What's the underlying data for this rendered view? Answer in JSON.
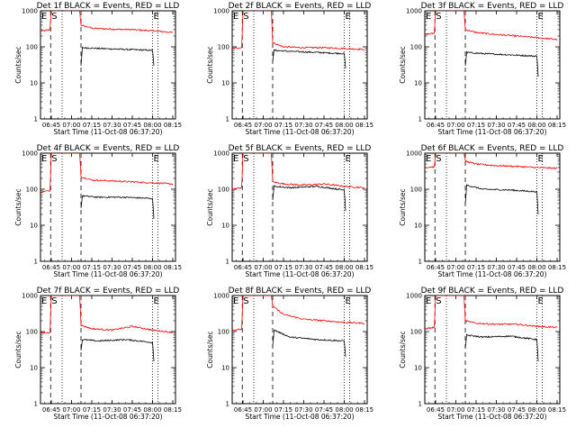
{
  "chart_data": [
    {
      "type": "line",
      "title": "Det 1f BLACK = Events, RED = LLD",
      "xlabel": "Start Time (11-Oct-08 06:37:20)",
      "ylabel": "Counts/sec",
      "xticks": [
        "06:45",
        "07:00",
        "07:15",
        "07:30",
        "07:45",
        "08:00",
        "08:15"
      ],
      "yticks": [
        "1",
        "10",
        "100",
        "1000"
      ],
      "yscale": "log",
      "ylim": [
        1,
        1000
      ],
      "markers": [
        "E",
        "S",
        "E"
      ],
      "series": [
        {
          "color": "#ff0000",
          "x": [
            "06:37",
            "06:44",
            "06:45",
            "06:45:30",
            "06:46",
            "07:06",
            "07:07",
            "07:15",
            "07:30",
            "07:45",
            "08:00",
            "08:15"
          ],
          "y": [
            270,
            300,
            1000,
            1000,
            1000,
            1000,
            400,
            330,
            310,
            300,
            280,
            250
          ]
        },
        {
          "color": "#000000",
          "x": [
            "07:07",
            "07:08",
            "07:20",
            "07:40",
            "08:00",
            "08:01"
          ],
          "y": [
            30,
            95,
            90,
            85,
            80,
            30
          ]
        }
      ]
    },
    {
      "type": "line",
      "title": "Det 2f BLACK = Events, RED = LLD",
      "xlabel": "Start Time (11-Oct-08 06:37:20)",
      "ylabel": "Counts/sec",
      "xticks": [
        "06:45",
        "07:00",
        "07:15",
        "07:30",
        "07:45",
        "08:00",
        "08:15"
      ],
      "yticks": [
        "1",
        "10",
        "100",
        "1000"
      ],
      "yscale": "log",
      "ylim": [
        1,
        1000
      ],
      "markers": [
        "E",
        "S",
        "E"
      ],
      "series": [
        {
          "color": "#ff0000",
          "x": [
            "06:37",
            "06:44",
            "06:45",
            "06:45:30",
            "06:46",
            "07:06",
            "07:07",
            "07:15",
            "07:30",
            "07:45",
            "08:00",
            "08:15"
          ],
          "y": [
            90,
            95,
            1000,
            1000,
            1000,
            1000,
            130,
            100,
            95,
            95,
            90,
            85
          ]
        },
        {
          "color": "#000000",
          "x": [
            "07:07",
            "07:08",
            "07:20",
            "07:40",
            "08:00",
            "08:01"
          ],
          "y": [
            40,
            80,
            75,
            70,
            65,
            25
          ]
        }
      ]
    },
    {
      "type": "line",
      "title": "Det 3f BLACK = Events, RED = LLD",
      "xlabel": "Start Time (11-Oct-08 06:37:20)",
      "ylabel": "Counts/sec",
      "xticks": [
        "06:45",
        "07:00",
        "07:15",
        "07:30",
        "07:45",
        "08:00",
        "08:15"
      ],
      "yticks": [
        "1",
        "10",
        "100",
        "1000"
      ],
      "yscale": "log",
      "ylim": [
        1,
        1000
      ],
      "markers": [
        "E",
        "S",
        "E"
      ],
      "series": [
        {
          "color": "#ff0000",
          "x": [
            "06:37",
            "06:44",
            "06:45",
            "06:45:30",
            "06:46",
            "07:06",
            "07:07",
            "07:15",
            "07:30",
            "07:45",
            "08:00",
            "08:15"
          ],
          "y": [
            220,
            240,
            1000,
            1000,
            1000,
            1000,
            300,
            250,
            220,
            200,
            180,
            160
          ]
        },
        {
          "color": "#000000",
          "x": [
            "07:07",
            "07:08",
            "07:20",
            "07:40",
            "08:00",
            "08:01"
          ],
          "y": [
            30,
            70,
            65,
            60,
            55,
            15
          ]
        }
      ]
    },
    {
      "type": "line",
      "title": "Det 4f BLACK = Events, RED = LLD",
      "xlabel": "Start Time (11-Oct-08 06:37:20)",
      "ylabel": "Counts/sec",
      "xticks": [
        "06:45",
        "07:00",
        "07:15",
        "07:30",
        "07:45",
        "08:00",
        "08:15"
      ],
      "yticks": [
        "1",
        "10",
        "100",
        "1000"
      ],
      "yscale": "log",
      "ylim": [
        1,
        1000
      ],
      "markers": [
        "E",
        "S",
        "E"
      ],
      "series": [
        {
          "color": "#ff0000",
          "x": [
            "06:37",
            "06:44",
            "06:45",
            "06:45:30",
            "06:46",
            "07:06",
            "07:07",
            "07:15",
            "07:30",
            "07:45",
            "08:00",
            "08:15"
          ],
          "y": [
            85,
            90,
            1000,
            1000,
            1000,
            1000,
            220,
            180,
            170,
            160,
            150,
            140
          ]
        },
        {
          "color": "#000000",
          "x": [
            "07:07",
            "07:08",
            "07:20",
            "07:40",
            "08:00",
            "08:01"
          ],
          "y": [
            30,
            65,
            60,
            60,
            55,
            15
          ]
        }
      ]
    },
    {
      "type": "line",
      "title": "Det 5f BLACK = Events, RED = LLD",
      "xlabel": "Start Time (11-Oct-08 06:37:20)",
      "ylabel": "Counts/sec",
      "xticks": [
        "06:45",
        "07:00",
        "07:15",
        "07:30",
        "07:45",
        "08:00",
        "08:15"
      ],
      "yticks": [
        "1",
        "10",
        "100",
        "1000"
      ],
      "yscale": "log",
      "ylim": [
        1,
        1000
      ],
      "markers": [
        "E",
        "S",
        "E"
      ],
      "series": [
        {
          "color": "#ff0000",
          "x": [
            "06:37",
            "06:44",
            "06:45",
            "06:45:30",
            "06:46",
            "07:06",
            "07:07",
            "07:15",
            "07:30",
            "07:45",
            "08:00",
            "08:15"
          ],
          "y": [
            100,
            110,
            1000,
            1000,
            1000,
            1000,
            160,
            140,
            130,
            140,
            120,
            110
          ]
        },
        {
          "color": "#000000",
          "x": [
            "07:07",
            "07:08",
            "07:20",
            "07:40",
            "08:00",
            "08:01"
          ],
          "y": [
            50,
            120,
            110,
            120,
            95,
            25
          ]
        }
      ]
    },
    {
      "type": "line",
      "title": "Det 6f BLACK = Events, RED = LLD",
      "xlabel": "Start Time (11-Oct-08 06:37:20)",
      "ylabel": "Counts/sec",
      "xticks": [
        "06:45",
        "07:00",
        "07:15",
        "07:30",
        "07:45",
        "08:00",
        "08:15"
      ],
      "yticks": [
        "1",
        "10",
        "100",
        "1000"
      ],
      "yscale": "log",
      "ylim": [
        1,
        1000
      ],
      "markers": [
        "E",
        "S",
        "E"
      ],
      "series": [
        {
          "color": "#ff0000",
          "x": [
            "06:37",
            "06:44",
            "06:45",
            "06:45:30",
            "06:46",
            "07:06",
            "07:07",
            "07:15",
            "07:30",
            "07:45",
            "08:00",
            "08:15"
          ],
          "y": [
            400,
            420,
            1000,
            1000,
            1000,
            1000,
            600,
            500,
            450,
            430,
            400,
            380
          ]
        },
        {
          "color": "#000000",
          "x": [
            "07:07",
            "07:08",
            "07:20",
            "07:40",
            "08:00",
            "08:01"
          ],
          "y": [
            40,
            130,
            100,
            95,
            85,
            20
          ]
        }
      ]
    },
    {
      "type": "line",
      "title": "Det 7f BLACK = Events, RED = LLD",
      "xlabel": "Start Time (11-Oct-08 06:37:20)",
      "ylabel": "Counts/sec",
      "xticks": [
        "06:45",
        "07:00",
        "07:15",
        "07:30",
        "07:45",
        "08:00",
        "08:15"
      ],
      "yticks": [
        "1",
        "10",
        "100",
        "1000"
      ],
      "yscale": "log",
      "ylim": [
        1,
        1000
      ],
      "markers": [
        "E",
        "S",
        "E"
      ],
      "series": [
        {
          "color": "#ff0000",
          "x": [
            "06:37",
            "06:44",
            "06:45",
            "06:45:30",
            "06:46",
            "07:06",
            "07:07",
            "07:15",
            "07:30",
            "07:45",
            "08:00",
            "08:15"
          ],
          "y": [
            90,
            95,
            1000,
            1000,
            1000,
            1000,
            150,
            120,
            110,
            140,
            110,
            95
          ]
        },
        {
          "color": "#000000",
          "x": [
            "07:07",
            "07:08",
            "07:20",
            "07:40",
            "08:00",
            "08:01"
          ],
          "y": [
            30,
            60,
            55,
            60,
            50,
            15
          ]
        }
      ]
    },
    {
      "type": "line",
      "title": "Det 8f BLACK = Events, RED = LLD",
      "xlabel": "Start Time (11-Oct-08 06:37:20)",
      "ylabel": "Counts/sec",
      "xticks": [
        "06:45",
        "07:00",
        "07:15",
        "07:30",
        "07:45",
        "08:00",
        "08:15"
      ],
      "yticks": [
        "1",
        "10",
        "100",
        "1000"
      ],
      "yscale": "log",
      "ylim": [
        1,
        1000
      ],
      "markers": [
        "E",
        "S",
        "E"
      ],
      "series": [
        {
          "color": "#ff0000",
          "x": [
            "06:37",
            "06:44",
            "06:45",
            "06:45:30",
            "06:46",
            "07:06",
            "07:07",
            "07:15",
            "07:30",
            "07:45",
            "08:00",
            "08:15"
          ],
          "y": [
            110,
            115,
            1000,
            1000,
            1000,
            1000,
            500,
            300,
            220,
            200,
            180,
            170
          ]
        },
        {
          "color": "#000000",
          "x": [
            "07:07",
            "07:08",
            "07:20",
            "07:40",
            "08:00",
            "08:01"
          ],
          "y": [
            40,
            110,
            70,
            60,
            55,
            20
          ]
        }
      ]
    },
    {
      "type": "line",
      "title": "Det 9f BLACK = Events, RED = LLD",
      "xlabel": "Start Time (11-Oct-08 06:37:20)",
      "ylabel": "Counts/sec",
      "xticks": [
        "06:45",
        "07:00",
        "07:15",
        "07:30",
        "07:45",
        "08:00",
        "08:15"
      ],
      "yticks": [
        "1",
        "10",
        "100",
        "1000"
      ],
      "yscale": "log",
      "ylim": [
        1,
        1000
      ],
      "markers": [
        "E",
        "S",
        "E"
      ],
      "series": [
        {
          "color": "#ff0000",
          "x": [
            "06:37",
            "06:44",
            "06:45",
            "06:45:30",
            "06:46",
            "07:06",
            "07:07",
            "07:15",
            "07:30",
            "07:45",
            "08:00",
            "08:15"
          ],
          "y": [
            120,
            130,
            1000,
            1000,
            1000,
            1000,
            200,
            170,
            160,
            160,
            140,
            130
          ]
        },
        {
          "color": "#000000",
          "x": [
            "07:07",
            "07:08",
            "07:20",
            "07:40",
            "08:00",
            "08:01"
          ],
          "y": [
            35,
            80,
            70,
            75,
            60,
            15
          ]
        }
      ]
    }
  ]
}
